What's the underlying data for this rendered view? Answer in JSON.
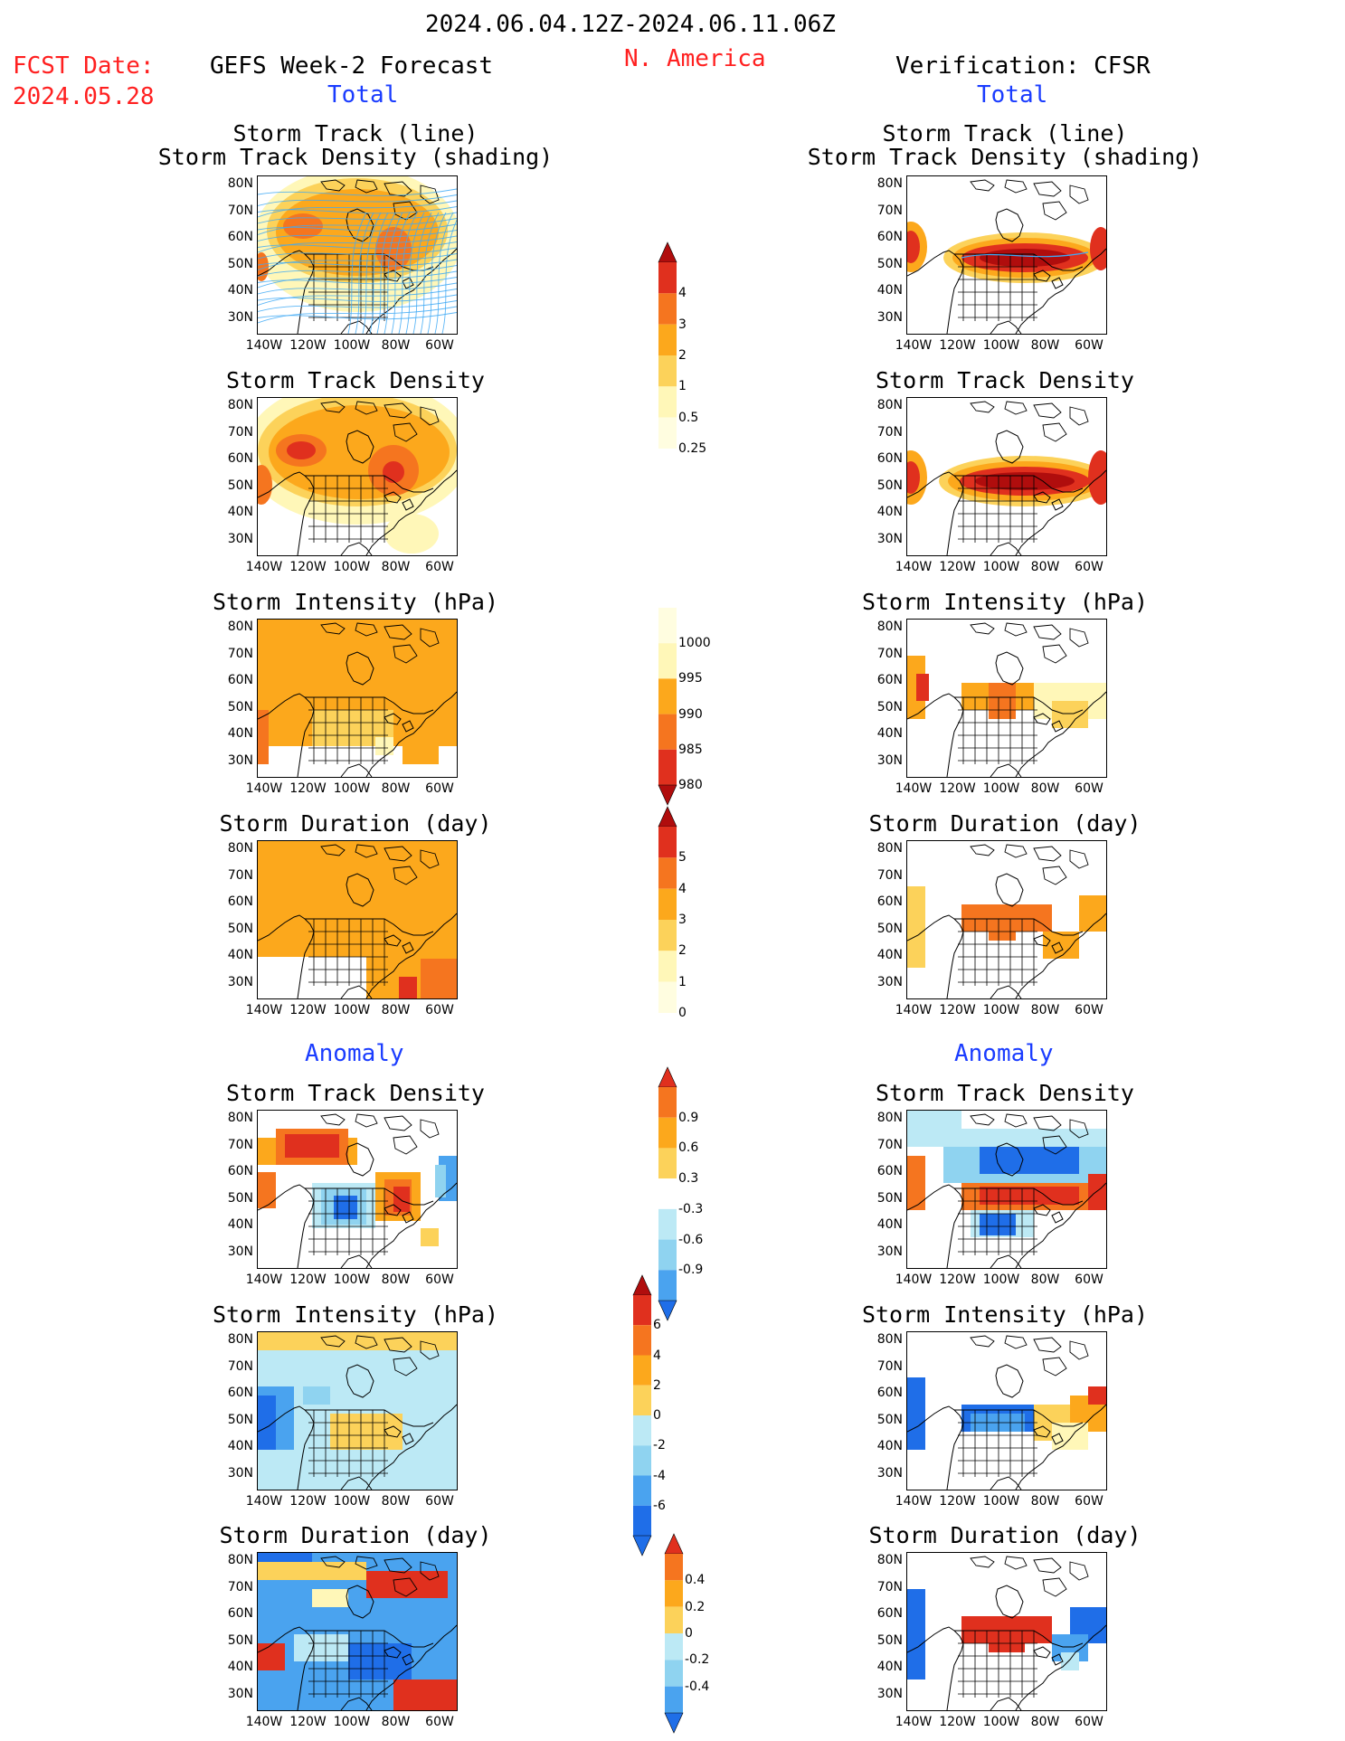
{
  "header": {
    "period": "2024.06.04.12Z-2024.06.11.06Z",
    "fcst_label": "FCST Date:",
    "fcst_date": "2024.05.28",
    "left_title": "GEFS Week-2 Forecast",
    "region": "N. America",
    "right_title": "Verification: CFSR"
  },
  "sections": {
    "total": "Total",
    "anomaly": "Anomaly"
  },
  "panel_titles": {
    "track_line": "Storm Track (line)",
    "track_shading": "Storm Track Density (shading)",
    "density": "Storm Track Density",
    "intensity": "Storm Intensity (hPa)",
    "duration": "Storm Duration (day)"
  },
  "map_axes": {
    "lat_labels": [
      "80N",
      "70N",
      "60N",
      "50N",
      "40N",
      "30N"
    ],
    "lon_labels": [
      "140W",
      "120W",
      "100W",
      "80W",
      "60W"
    ]
  },
  "colorbars": {
    "density_total": [
      "4",
      "3",
      "2",
      "1",
      "0.5",
      "0.25"
    ],
    "intensity_total": [
      "1000",
      "995",
      "990",
      "985",
      "980"
    ],
    "duration_total": [
      "5",
      "4",
      "3",
      "2",
      "1",
      "0"
    ],
    "density_anomaly": [
      "0.9",
      "0.6",
      "0.3",
      "-0.3",
      "-0.6",
      "-0.9"
    ],
    "intensity_anomaly": [
      "6",
      "4",
      "2",
      "0",
      "-2",
      "-4",
      "-6"
    ],
    "duration_anomaly": [
      "0.4",
      "0.2",
      "0",
      "-0.2",
      "-0.4"
    ]
  },
  "colors": {
    "yellow_light": "#fff7b8",
    "yellow": "#fcd25a",
    "orange": "#fca81c",
    "orange_dark": "#f5751f",
    "red": "#e0301e",
    "dark_red": "#b00d0d",
    "blue_light": "#bce9f5",
    "blue_pale": "#8fd3f0",
    "blue": "#4aa3ef",
    "blue_dark": "#1f6ee8",
    "red_title": "#ff2020",
    "blue_title": "#1a3cff"
  }
}
